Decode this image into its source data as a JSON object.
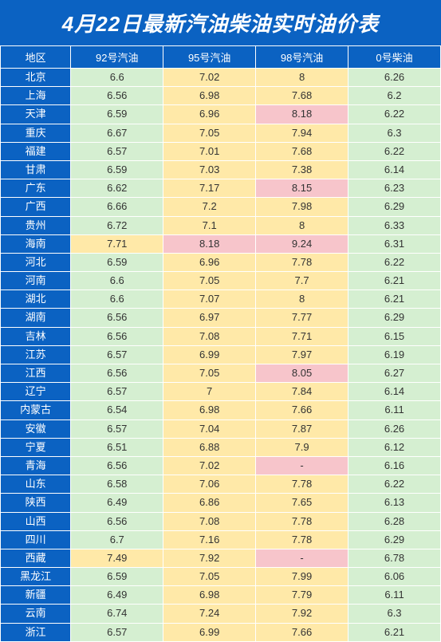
{
  "title": "4月22日最新汽油柴油实时油价表",
  "columns": [
    "地区",
    "92号汽油",
    "95号汽油",
    "98号汽油",
    "0号柴油"
  ],
  "colors": {
    "header_bg": "#0b62c2",
    "header_fg": "#ffffff",
    "green": "#d5efd1",
    "yellow": "#ffe9a8",
    "pink": "#f7c5cb",
    "cell_fg": "#333333",
    "border": "#ffffff"
  },
  "typography": {
    "title_fontsize": 26,
    "title_weight": "bold",
    "title_style": "italic",
    "header_fontsize": 13,
    "cell_fontsize": 13
  },
  "column_widths_pct": [
    16,
    21,
    21,
    21,
    21
  ],
  "rows": [
    {
      "region": "北京",
      "c92": {
        "v": "6.6",
        "c": "green"
      },
      "c95": {
        "v": "7.02",
        "c": "yellow"
      },
      "c98": {
        "v": "8",
        "c": "yellow"
      },
      "c0": {
        "v": "6.26",
        "c": "green"
      }
    },
    {
      "region": "上海",
      "c92": {
        "v": "6.56",
        "c": "green"
      },
      "c95": {
        "v": "6.98",
        "c": "yellow"
      },
      "c98": {
        "v": "7.68",
        "c": "yellow"
      },
      "c0": {
        "v": "6.2",
        "c": "green"
      }
    },
    {
      "region": "天津",
      "c92": {
        "v": "6.59",
        "c": "green"
      },
      "c95": {
        "v": "6.96",
        "c": "yellow"
      },
      "c98": {
        "v": "8.18",
        "c": "pink"
      },
      "c0": {
        "v": "6.22",
        "c": "green"
      }
    },
    {
      "region": "重庆",
      "c92": {
        "v": "6.67",
        "c": "green"
      },
      "c95": {
        "v": "7.05",
        "c": "yellow"
      },
      "c98": {
        "v": "7.94",
        "c": "yellow"
      },
      "c0": {
        "v": "6.3",
        "c": "green"
      }
    },
    {
      "region": "福建",
      "c92": {
        "v": "6.57",
        "c": "green"
      },
      "c95": {
        "v": "7.01",
        "c": "yellow"
      },
      "c98": {
        "v": "7.68",
        "c": "yellow"
      },
      "c0": {
        "v": "6.22",
        "c": "green"
      }
    },
    {
      "region": "甘肃",
      "c92": {
        "v": "6.59",
        "c": "green"
      },
      "c95": {
        "v": "7.03",
        "c": "yellow"
      },
      "c98": {
        "v": "7.38",
        "c": "yellow"
      },
      "c0": {
        "v": "6.14",
        "c": "green"
      }
    },
    {
      "region": "广东",
      "c92": {
        "v": "6.62",
        "c": "green"
      },
      "c95": {
        "v": "7.17",
        "c": "yellow"
      },
      "c98": {
        "v": "8.15",
        "c": "pink"
      },
      "c0": {
        "v": "6.23",
        "c": "green"
      }
    },
    {
      "region": "广西",
      "c92": {
        "v": "6.66",
        "c": "green"
      },
      "c95": {
        "v": "7.2",
        "c": "yellow"
      },
      "c98": {
        "v": "7.98",
        "c": "yellow"
      },
      "c0": {
        "v": "6.29",
        "c": "green"
      }
    },
    {
      "region": "贵州",
      "c92": {
        "v": "6.72",
        "c": "green"
      },
      "c95": {
        "v": "7.1",
        "c": "yellow"
      },
      "c98": {
        "v": "8",
        "c": "yellow"
      },
      "c0": {
        "v": "6.33",
        "c": "green"
      }
    },
    {
      "region": "海南",
      "c92": {
        "v": "7.71",
        "c": "yellow"
      },
      "c95": {
        "v": "8.18",
        "c": "pink"
      },
      "c98": {
        "v": "9.24",
        "c": "pink"
      },
      "c0": {
        "v": "6.31",
        "c": "green"
      }
    },
    {
      "region": "河北",
      "c92": {
        "v": "6.59",
        "c": "green"
      },
      "c95": {
        "v": "6.96",
        "c": "yellow"
      },
      "c98": {
        "v": "7.78",
        "c": "yellow"
      },
      "c0": {
        "v": "6.22",
        "c": "green"
      }
    },
    {
      "region": "河南",
      "c92": {
        "v": "6.6",
        "c": "green"
      },
      "c95": {
        "v": "7.05",
        "c": "yellow"
      },
      "c98": {
        "v": "7.7",
        "c": "yellow"
      },
      "c0": {
        "v": "6.21",
        "c": "green"
      }
    },
    {
      "region": "湖北",
      "c92": {
        "v": "6.6",
        "c": "green"
      },
      "c95": {
        "v": "7.07",
        "c": "yellow"
      },
      "c98": {
        "v": "8",
        "c": "yellow"
      },
      "c0": {
        "v": "6.21",
        "c": "green"
      }
    },
    {
      "region": "湖南",
      "c92": {
        "v": "6.56",
        "c": "green"
      },
      "c95": {
        "v": "6.97",
        "c": "yellow"
      },
      "c98": {
        "v": "7.77",
        "c": "yellow"
      },
      "c0": {
        "v": "6.29",
        "c": "green"
      }
    },
    {
      "region": "吉林",
      "c92": {
        "v": "6.56",
        "c": "green"
      },
      "c95": {
        "v": "7.08",
        "c": "yellow"
      },
      "c98": {
        "v": "7.71",
        "c": "yellow"
      },
      "c0": {
        "v": "6.15",
        "c": "green"
      }
    },
    {
      "region": "江苏",
      "c92": {
        "v": "6.57",
        "c": "green"
      },
      "c95": {
        "v": "6.99",
        "c": "yellow"
      },
      "c98": {
        "v": "7.97",
        "c": "yellow"
      },
      "c0": {
        "v": "6.19",
        "c": "green"
      }
    },
    {
      "region": "江西",
      "c92": {
        "v": "6.56",
        "c": "green"
      },
      "c95": {
        "v": "7.05",
        "c": "yellow"
      },
      "c98": {
        "v": "8.05",
        "c": "pink"
      },
      "c0": {
        "v": "6.27",
        "c": "green"
      }
    },
    {
      "region": "辽宁",
      "c92": {
        "v": "6.57",
        "c": "green"
      },
      "c95": {
        "v": "7",
        "c": "yellow"
      },
      "c98": {
        "v": "7.84",
        "c": "yellow"
      },
      "c0": {
        "v": "6.14",
        "c": "green"
      }
    },
    {
      "region": "内蒙古",
      "c92": {
        "v": "6.54",
        "c": "green"
      },
      "c95": {
        "v": "6.98",
        "c": "yellow"
      },
      "c98": {
        "v": "7.66",
        "c": "yellow"
      },
      "c0": {
        "v": "6.11",
        "c": "green"
      }
    },
    {
      "region": "安徽",
      "c92": {
        "v": "6.57",
        "c": "green"
      },
      "c95": {
        "v": "7.04",
        "c": "yellow"
      },
      "c98": {
        "v": "7.87",
        "c": "yellow"
      },
      "c0": {
        "v": "6.26",
        "c": "green"
      }
    },
    {
      "region": "宁夏",
      "c92": {
        "v": "6.51",
        "c": "green"
      },
      "c95": {
        "v": "6.88",
        "c": "yellow"
      },
      "c98": {
        "v": "7.9",
        "c": "yellow"
      },
      "c0": {
        "v": "6.12",
        "c": "green"
      }
    },
    {
      "region": "青海",
      "c92": {
        "v": "6.56",
        "c": "green"
      },
      "c95": {
        "v": "7.02",
        "c": "yellow"
      },
      "c98": {
        "v": "-",
        "c": "pink"
      },
      "c0": {
        "v": "6.16",
        "c": "green"
      }
    },
    {
      "region": "山东",
      "c92": {
        "v": "6.58",
        "c": "green"
      },
      "c95": {
        "v": "7.06",
        "c": "yellow"
      },
      "c98": {
        "v": "7.78",
        "c": "yellow"
      },
      "c0": {
        "v": "6.22",
        "c": "green"
      }
    },
    {
      "region": "陕西",
      "c92": {
        "v": "6.49",
        "c": "green"
      },
      "c95": {
        "v": "6.86",
        "c": "yellow"
      },
      "c98": {
        "v": "7.65",
        "c": "yellow"
      },
      "c0": {
        "v": "6.13",
        "c": "green"
      }
    },
    {
      "region": "山西",
      "c92": {
        "v": "6.56",
        "c": "green"
      },
      "c95": {
        "v": "7.08",
        "c": "yellow"
      },
      "c98": {
        "v": "7.78",
        "c": "yellow"
      },
      "c0": {
        "v": "6.28",
        "c": "green"
      }
    },
    {
      "region": "四川",
      "c92": {
        "v": "6.7",
        "c": "green"
      },
      "c95": {
        "v": "7.16",
        "c": "yellow"
      },
      "c98": {
        "v": "7.78",
        "c": "yellow"
      },
      "c0": {
        "v": "6.29",
        "c": "green"
      }
    },
    {
      "region": "西藏",
      "c92": {
        "v": "7.49",
        "c": "yellow"
      },
      "c95": {
        "v": "7.92",
        "c": "yellow"
      },
      "c98": {
        "v": "-",
        "c": "pink"
      },
      "c0": {
        "v": "6.78",
        "c": "green"
      }
    },
    {
      "region": "黑龙江",
      "c92": {
        "v": "6.59",
        "c": "green"
      },
      "c95": {
        "v": "7.05",
        "c": "yellow"
      },
      "c98": {
        "v": "7.99",
        "c": "yellow"
      },
      "c0": {
        "v": "6.06",
        "c": "green"
      }
    },
    {
      "region": "新疆",
      "c92": {
        "v": "6.49",
        "c": "green"
      },
      "c95": {
        "v": "6.98",
        "c": "yellow"
      },
      "c98": {
        "v": "7.79",
        "c": "yellow"
      },
      "c0": {
        "v": "6.11",
        "c": "green"
      }
    },
    {
      "region": "云南",
      "c92": {
        "v": "6.74",
        "c": "green"
      },
      "c95": {
        "v": "7.24",
        "c": "yellow"
      },
      "c98": {
        "v": "7.92",
        "c": "yellow"
      },
      "c0": {
        "v": "6.3",
        "c": "green"
      }
    },
    {
      "region": "浙江",
      "c92": {
        "v": "6.57",
        "c": "green"
      },
      "c95": {
        "v": "6.99",
        "c": "yellow"
      },
      "c98": {
        "v": "7.66",
        "c": "yellow"
      },
      "c0": {
        "v": "6.21",
        "c": "green"
      }
    }
  ]
}
